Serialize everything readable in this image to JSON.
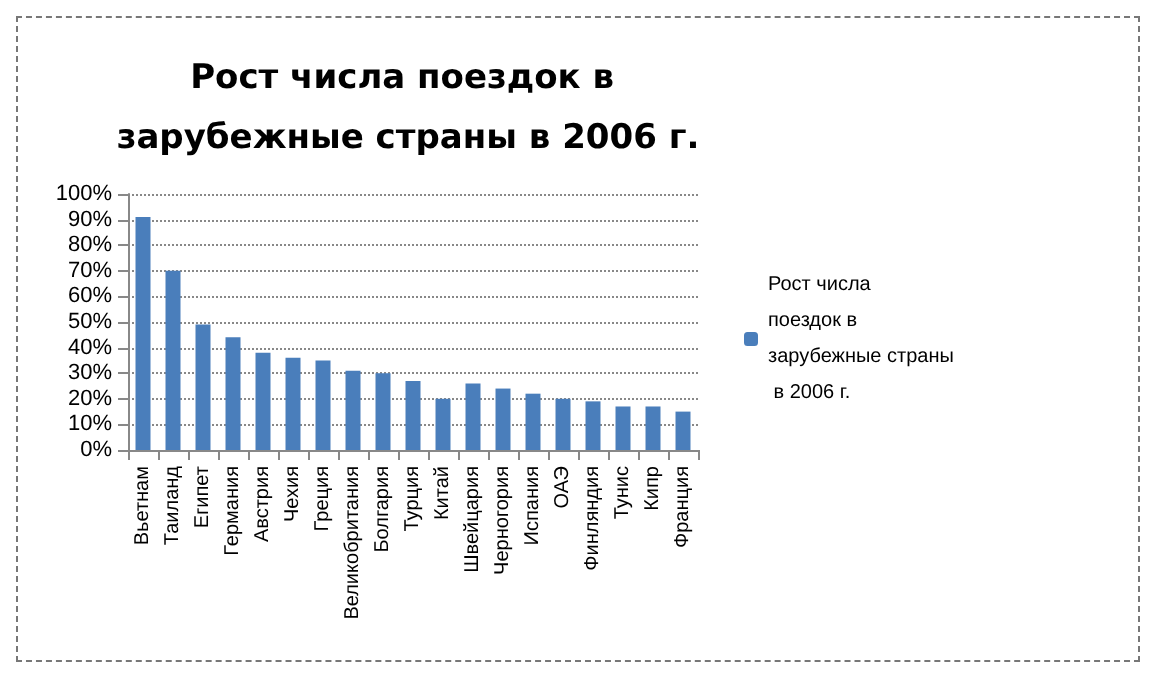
{
  "chart_data": {
    "type": "bar",
    "title": "Рост числа поездок в зарубежные страны в 2006 г.",
    "categories": [
      "Вьетнам",
      "Таиланд",
      "Египет",
      "Германия",
      "Австрия",
      "Чехия",
      "Греция",
      "Великобритания",
      "Болгария",
      "Турция",
      "Китай",
      "Швейцария",
      "Черногория",
      "Испания",
      "ОАЭ",
      "Финляндия",
      "Тунис",
      "Кипр",
      "Франция"
    ],
    "series": [
      {
        "name": "Рост числа поездок в зарубежные страны в 2006 г.",
        "color": "#4a7ebb",
        "values": [
          91,
          70,
          49,
          44,
          38,
          36,
          35,
          31,
          30,
          27,
          20,
          26,
          24,
          22,
          20,
          19,
          17,
          17,
          15
        ]
      }
    ],
    "ylim": [
      0,
      100
    ],
    "yticks": [
      {
        "value": 0,
        "label": "0%"
      },
      {
        "value": 10,
        "label": "10%"
      },
      {
        "value": 20,
        "label": "20%"
      },
      {
        "value": 30,
        "label": "30%"
      },
      {
        "value": 40,
        "label": "40%"
      },
      {
        "value": 50,
        "label": "50%"
      },
      {
        "value": 60,
        "label": "60%"
      },
      {
        "value": 70,
        "label": "70%"
      },
      {
        "value": 80,
        "label": "80%"
      },
      {
        "value": 90,
        "label": "90%"
      },
      {
        "value": 100,
        "label": "100%"
      }
    ],
    "grid": "y",
    "legend": "right"
  }
}
